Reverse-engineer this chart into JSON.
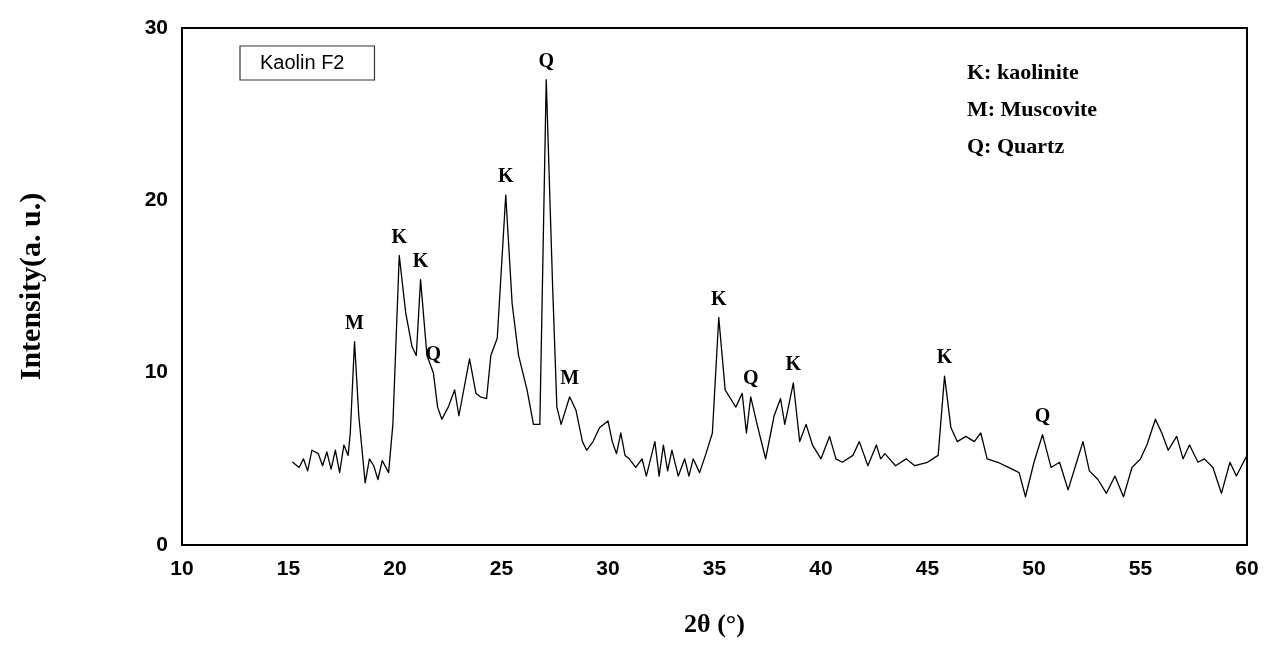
{
  "chart_data": {
    "type": "line",
    "xlabel": "2θ (°)",
    "ylabel": "Intensity(a. u.)",
    "xlim": [
      10,
      60
    ],
    "xticks": [
      10,
      15,
      20,
      25,
      30,
      35,
      40,
      45,
      50,
      55,
      60
    ],
    "ylim": [
      0,
      30
    ],
    "yticks": [
      0,
      10,
      20,
      30
    ],
    "grid": false,
    "legend": false,
    "marker": "none",
    "line_style": "solid",
    "series": [
      {
        "color": "#000000",
        "x": [
          15.2,
          15.5,
          15.7,
          15.9,
          16.1,
          16.4,
          16.6,
          16.8,
          17.0,
          17.2,
          17.4,
          17.6,
          17.8,
          17.9,
          18.1,
          18.3,
          18.6,
          18.8,
          19.0,
          19.2,
          19.4,
          19.7,
          19.9,
          20.2,
          20.5,
          20.8,
          21.0,
          21.2,
          21.5,
          21.8,
          22.0,
          22.2,
          22.5,
          22.8,
          23.0,
          23.5,
          23.8,
          24.0,
          24.3,
          24.5,
          24.8,
          25.2,
          25.5,
          25.8,
          26.2,
          26.5,
          26.8,
          27.1,
          27.4,
          27.6,
          27.8,
          28.2,
          28.5,
          28.8,
          29.0,
          29.3,
          29.6,
          30.0,
          30.2,
          30.4,
          30.6,
          30.8,
          31.0,
          31.3,
          31.6,
          31.8,
          32.0,
          32.2,
          32.4,
          32.6,
          32.8,
          33.0,
          33.3,
          33.6,
          33.8,
          34.0,
          34.3,
          34.6,
          34.9,
          35.2,
          35.5,
          35.8,
          36.0,
          36.3,
          36.5,
          36.7,
          37.0,
          37.4,
          37.8,
          38.1,
          38.3,
          38.7,
          39.0,
          39.3,
          39.6,
          40.0,
          40.4,
          40.7,
          41.0,
          41.5,
          41.8,
          42.2,
          42.6,
          42.8,
          43.0,
          43.5,
          44.0,
          44.4,
          45.0,
          45.5,
          45.8,
          46.1,
          46.4,
          46.8,
          47.2,
          47.5,
          47.8,
          48.3,
          48.8,
          49.3,
          49.6,
          50.0,
          50.4,
          50.8,
          51.2,
          51.6,
          52.0,
          52.3,
          52.6,
          53.0,
          53.4,
          53.8,
          54.2,
          54.6,
          55.0,
          55.3,
          55.7,
          56.0,
          56.3,
          56.7,
          57.0,
          57.3,
          57.7,
          58.0,
          58.4,
          58.8,
          59.2,
          59.5,
          60.0
        ],
        "values": [
          4.8,
          4.5,
          5.0,
          4.3,
          5.5,
          5.3,
          4.6,
          5.4,
          4.4,
          5.5,
          4.2,
          5.8,
          5.2,
          6.5,
          11.8,
          7.5,
          3.6,
          5.0,
          4.6,
          3.8,
          4.9,
          4.2,
          7.0,
          16.8,
          13.5,
          11.5,
          11.0,
          15.4,
          11.0,
          10.0,
          8.0,
          7.3,
          8.0,
          9.0,
          7.5,
          10.8,
          8.8,
          8.6,
          8.5,
          11.0,
          12.0,
          20.3,
          14.0,
          11.0,
          9.0,
          7.0,
          7.0,
          27.0,
          15.0,
          8.0,
          7.0,
          8.6,
          7.8,
          6.0,
          5.5,
          6.0,
          6.8,
          7.2,
          6.0,
          5.3,
          6.5,
          5.2,
          5.0,
          4.5,
          5.0,
          4.0,
          5.0,
          6.0,
          4.0,
          5.8,
          4.3,
          5.5,
          4.0,
          5.0,
          4.0,
          5.0,
          4.2,
          5.3,
          6.5,
          13.2,
          9.0,
          8.4,
          8.0,
          8.8,
          6.5,
          8.6,
          7.0,
          5.0,
          7.5,
          8.5,
          7.0,
          9.4,
          6.0,
          7.0,
          5.8,
          5.0,
          6.3,
          5.0,
          4.8,
          5.2,
          6.0,
          4.6,
          5.8,
          5.0,
          5.3,
          4.6,
          5.0,
          4.6,
          4.8,
          5.2,
          9.8,
          6.8,
          6.0,
          6.3,
          6.0,
          6.5,
          5.0,
          4.8,
          4.5,
          4.2,
          2.8,
          4.8,
          6.4,
          4.5,
          4.8,
          3.2,
          4.8,
          6.0,
          4.3,
          3.8,
          3.0,
          4.0,
          2.8,
          4.5,
          5.0,
          5.8,
          7.3,
          6.5,
          5.5,
          6.3,
          5.0,
          5.8,
          4.8,
          5.0,
          4.5,
          3.0,
          4.8,
          4.0,
          5.2
        ]
      }
    ],
    "annotations": [
      "Kaolin F2",
      "K: kaolinite",
      "M: Muscovite",
      "Q: Quartz",
      {
        "text": "M",
        "x": 18.1,
        "y": 11.8
      },
      {
        "text": "K",
        "x": 20.2,
        "y": 16.8
      },
      {
        "text": "K",
        "x": 21.2,
        "y": 15.4
      },
      {
        "text": "Q",
        "x": 21.8,
        "y": 10.0
      },
      {
        "text": "K",
        "x": 25.2,
        "y": 20.3
      },
      {
        "text": "Q",
        "x": 27.1,
        "y": 27.0
      },
      {
        "text": "M",
        "x": 28.2,
        "y": 8.6
      },
      {
        "text": "K",
        "x": 35.2,
        "y": 13.2
      },
      {
        "text": "Q",
        "x": 36.7,
        "y": 8.6
      },
      {
        "text": "K",
        "x": 38.7,
        "y": 9.4
      },
      {
        "text": "K",
        "x": 45.8,
        "y": 9.8
      },
      {
        "text": "Q",
        "x": 50.4,
        "y": 6.4
      }
    ]
  }
}
